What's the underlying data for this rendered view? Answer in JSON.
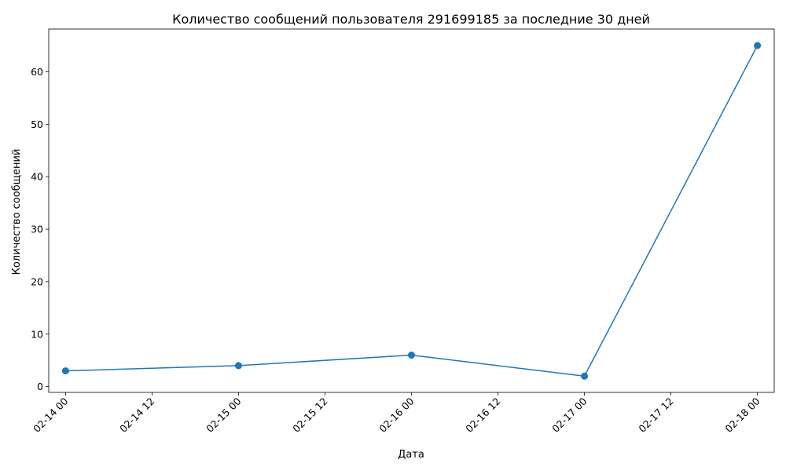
{
  "chart_data": {
    "type": "line",
    "title": "Количество сообщений пользователя 291699185 за последние 30 дней",
    "xlabel": "Дата",
    "ylabel": "Количество сообщений",
    "x_axis_type": "date",
    "x_range": [
      "2024-02-13T21:40",
      "2024-02-18T02:20"
    ],
    "y_range": [
      -1.1,
      68.15
    ],
    "grid": false,
    "legend": "none",
    "x_ticks": [
      {
        "value": "2024-02-14T00:00",
        "label": "02-14 00"
      },
      {
        "value": "2024-02-14T12:00",
        "label": "02-14 12"
      },
      {
        "value": "2024-02-15T00:00",
        "label": "02-15 00"
      },
      {
        "value": "2024-02-15T12:00",
        "label": "02-15 12"
      },
      {
        "value": "2024-02-16T00:00",
        "label": "02-16 00"
      },
      {
        "value": "2024-02-16T12:00",
        "label": "02-16 12"
      },
      {
        "value": "2024-02-17T00:00",
        "label": "02-17 00"
      },
      {
        "value": "2024-02-17T12:00",
        "label": "02-17 12"
      },
      {
        "value": "2024-02-18T00:00",
        "label": "02-18 00"
      }
    ],
    "y_ticks": [
      0,
      10,
      20,
      30,
      40,
      50,
      60
    ],
    "series": [
      {
        "color": "#1f77b4",
        "marker": "circle",
        "x": [
          "2024-02-14T00:00",
          "2024-02-15T00:00",
          "2024-02-16T00:00",
          "2024-02-17T00:00",
          "2024-02-18T00:00"
        ],
        "values": [
          3,
          4,
          6,
          2,
          65
        ]
      }
    ]
  }
}
